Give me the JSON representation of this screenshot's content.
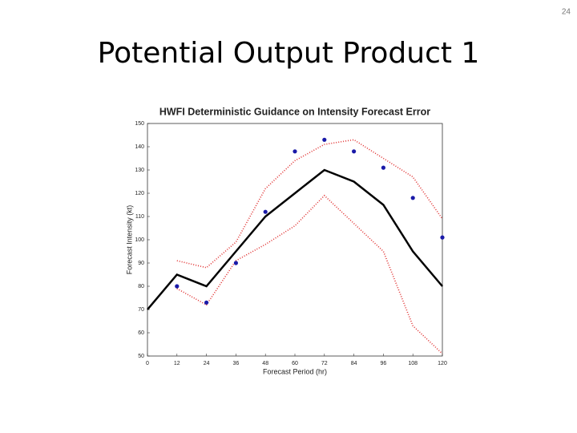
{
  "slide_number": "24",
  "slide_title": "Potential Output Product 1",
  "chart_data": {
    "type": "line",
    "title": "HWFI Deterministic Guidance on Intensity Forecast Error",
    "x_label": "Forecast Period (hr)",
    "y_label": "Forecast Intensity (kt)",
    "x": [
      0,
      12,
      24,
      36,
      48,
      60,
      72,
      84,
      96,
      108,
      120
    ],
    "xlim": [
      0,
      120
    ],
    "xticks": [
      0,
      12,
      24,
      36,
      48,
      60,
      72,
      84,
      96,
      108,
      120
    ],
    "ylim": [
      50,
      150
    ],
    "yticks": [
      50,
      60,
      70,
      80,
      90,
      100,
      110,
      120,
      130,
      140,
      150
    ],
    "grid": false,
    "series": [
      {
        "color": "#000000",
        "linestyle": "solid",
        "marker": "none",
        "values": [
          70,
          85,
          80,
          95,
          110,
          120,
          130,
          125,
          115,
          95,
          80
        ]
      },
      {
        "color": "#e03030",
        "linestyle": "dotted",
        "marker": "none",
        "values": [
          null,
          91,
          88,
          99,
          122,
          134,
          141,
          143,
          135,
          127,
          109
        ]
      },
      {
        "color": "#e03030",
        "linestyle": "dotted",
        "marker": "none",
        "values": [
          null,
          79,
          72,
          91,
          98,
          106,
          119,
          107,
          95,
          63,
          51
        ]
      },
      {
        "color": "#1a1aa8",
        "linestyle": "none",
        "marker": "circle",
        "values": [
          null,
          80,
          73,
          90,
          112,
          138,
          143,
          138,
          131,
          118,
          101
        ]
      }
    ]
  }
}
